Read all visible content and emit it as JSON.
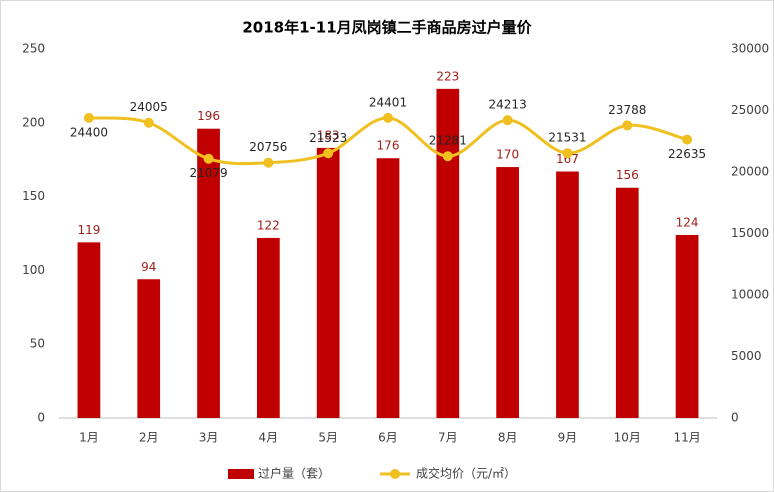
{
  "chart_data": {
    "type": "bar",
    "title": "2018年1-11月凤岗镇二手商品房过户量价",
    "categories": [
      "1月",
      "2月",
      "3月",
      "4月",
      "5月",
      "6月",
      "7月",
      "8月",
      "9月",
      "10月",
      "11月"
    ],
    "series": [
      {
        "name": "过户量（套）",
        "type": "bar",
        "color": "#c00000",
        "values": [
          119,
          94,
          196,
          122,
          183,
          176,
          223,
          170,
          167,
          156,
          124
        ]
      },
      {
        "name": "成交均价（元/㎡）",
        "type": "line",
        "axis": "y2",
        "color": "#f0c020",
        "values": [
          24400,
          24005,
          21079,
          20756,
          21523,
          24401,
          21281,
          24213,
          21531,
          23788,
          22635
        ]
      }
    ],
    "ylim": [
      0,
      250
    ],
    "yticks": [
      0,
      50,
      100,
      150,
      200,
      250
    ],
    "y2lim": [
      0,
      30000
    ],
    "y2ticks": [
      0,
      5000,
      10000,
      15000,
      20000,
      25000,
      30000
    ],
    "grid": false,
    "legend": "bottom"
  }
}
